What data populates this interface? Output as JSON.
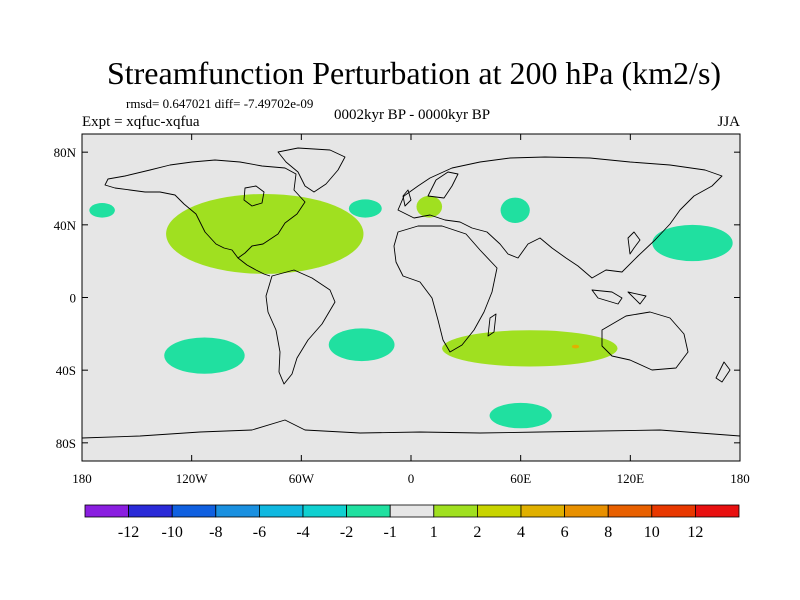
{
  "chart_data": {
    "type": "heatmap",
    "title": "Streamfunction Perturbation at 200 hPa (km2/s)",
    "stats_line": "rmsd= 0.647021 diff= -7.49702e-09",
    "left_label": "Expt = xqfuc-xqfua",
    "center_label": "0002kyr BP - 0000kyr BP",
    "right_label": "JJA",
    "x_range": [
      -180,
      180
    ],
    "y_range": [
      -90,
      90
    ],
    "x_ticks": [
      {
        "value": -180,
        "label": "180"
      },
      {
        "value": -120,
        "label": "120W"
      },
      {
        "value": -60,
        "label": "60W"
      },
      {
        "value": 0,
        "label": "0"
      },
      {
        "value": 60,
        "label": "60E"
      },
      {
        "value": 120,
        "label": "120E"
      },
      {
        "value": 180,
        "label": "180"
      }
    ],
    "y_ticks": [
      {
        "value": 80,
        "label": "80N"
      },
      {
        "value": 40,
        "label": "40N"
      },
      {
        "value": 0,
        "label": "0"
      },
      {
        "value": -40,
        "label": "40S"
      },
      {
        "value": -80,
        "label": "80S"
      }
    ],
    "colorbar": {
      "colors": [
        "#8a1ee0",
        "#2a2ad8",
        "#1060e0",
        "#1a90e0",
        "#10b8e0",
        "#10d0d0",
        "#20e0a0",
        "#e6e6e6",
        "#a0e020",
        "#c8d400",
        "#e0b000",
        "#e89000",
        "#e86000",
        "#e83800",
        "#e81010"
      ],
      "boundaries": [
        -12,
        -10,
        -8,
        -6,
        -4,
        -2,
        -1,
        1,
        2,
        4,
        6,
        8,
        10,
        12
      ],
      "labels": [
        "-12",
        "-10",
        "-8",
        "-6",
        "-4",
        "-2",
        "-1",
        "1",
        "2",
        "4",
        "6",
        "8",
        "10",
        "12"
      ]
    },
    "anomalies": [
      {
        "name": "north-pacific-west",
        "lon": -169,
        "lat": 48,
        "rx": 7,
        "ry": 4,
        "color": "#20e0a0"
      },
      {
        "name": "north-atlantic-central",
        "lon": -25,
        "lat": 49,
        "rx": 9,
        "ry": 5,
        "color": "#20e0a0"
      },
      {
        "name": "central-asia",
        "lon": 57,
        "lat": 48,
        "rx": 8,
        "ry": 7,
        "color": "#20e0a0"
      },
      {
        "name": "northwest-pacific",
        "lon": 154,
        "lat": 30,
        "rx": 22,
        "ry": 10,
        "color": "#20e0a0"
      },
      {
        "name": "south-pacific-east",
        "lon": -113,
        "lat": -32,
        "rx": 22,
        "ry": 10,
        "color": "#20e0a0"
      },
      {
        "name": "south-atlantic",
        "lon": -27,
        "lat": -26,
        "rx": 18,
        "ry": 9,
        "color": "#20e0a0"
      },
      {
        "name": "southern-indian-ocean",
        "lon": 60,
        "lat": -65,
        "rx": 17,
        "ry": 7,
        "color": "#20e0a0"
      },
      {
        "name": "europe",
        "lon": 10,
        "lat": 50,
        "rx": 7,
        "ry": 6,
        "color": "#a0e020"
      },
      {
        "name": "north-america-atlantic-band",
        "lon": -80,
        "lat": 35,
        "rx": 54,
        "ry": 22,
        "color": "#a0e020"
      },
      {
        "name": "southern-indian-band",
        "lon": 65,
        "lat": -28,
        "rx": 48,
        "ry": 10,
        "color": "#a0e020"
      },
      {
        "name": "pos-max-southern-indian",
        "lon": 90,
        "lat": -27,
        "rx": 2,
        "ry": 1,
        "color": "#e0b000"
      }
    ]
  }
}
